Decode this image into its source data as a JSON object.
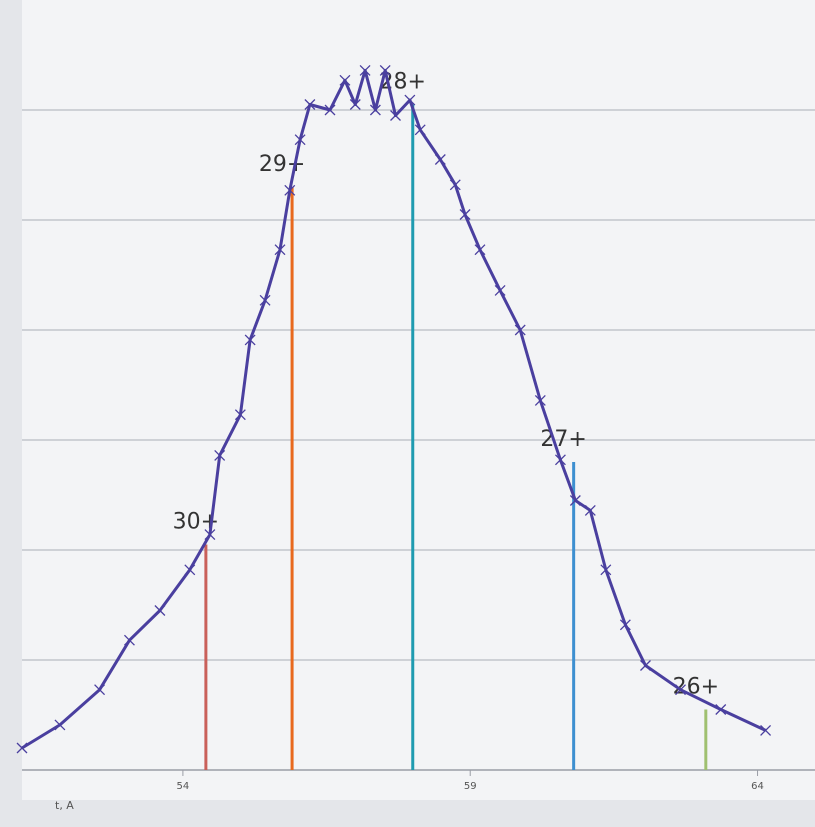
{
  "chart_data": {
    "type": "line",
    "xlabel": "t, A",
    "color": "#4a3f9f",
    "x": [
      51.2,
      51.86,
      52.55,
      53.07,
      53.6,
      54.12,
      54.47,
      54.64,
      55.0,
      55.17,
      55.43,
      55.69,
      55.86,
      56.04,
      56.21,
      56.56,
      56.82,
      57.0,
      57.17,
      57.35,
      57.52,
      57.7,
      57.95,
      58.13,
      58.48,
      58.74,
      58.91,
      59.17,
      59.52,
      59.87,
      60.22,
      60.57,
      60.83,
      61.09,
      61.36,
      61.7,
      62.05,
      62.66,
      63.36,
      64.14
    ],
    "values": [
      0.2,
      0.41,
      0.73,
      1.18,
      1.45,
      1.82,
      2.14,
      2.86,
      3.23,
      3.91,
      4.27,
      4.73,
      5.27,
      5.73,
      6.05,
      6.0,
      6.27,
      6.05,
      6.36,
      6.0,
      6.36,
      5.95,
      6.09,
      5.82,
      5.55,
      5.32,
      5.05,
      4.73,
      4.36,
      4.0,
      3.36,
      2.82,
      2.45,
      2.36,
      1.82,
      1.32,
      0.95,
      0.73,
      0.55,
      0.36
    ],
    "annotations": [
      {
        "label": "30+",
        "x": 54.4,
        "value": 2.05,
        "color": "#c9605a"
      },
      {
        "label": "29+",
        "x": 55.9,
        "value": 5.3,
        "color": "#e8691e"
      },
      {
        "label": "28+",
        "x": 58.0,
        "value": 6.05,
        "color": "#1f9bb0"
      },
      {
        "label": "27+",
        "x": 60.8,
        "value": 2.8,
        "color": "#3d8fd0"
      },
      {
        "label": "26+",
        "x": 63.1,
        "value": 0.55,
        "color": "#9fc070"
      }
    ],
    "xlim": [
      51.2,
      65
    ],
    "ylim": [
      0,
      7
    ],
    "xticks": [
      54,
      59,
      64
    ],
    "yticks": [
      1,
      2,
      3,
      4,
      5,
      6
    ],
    "grid": true
  }
}
